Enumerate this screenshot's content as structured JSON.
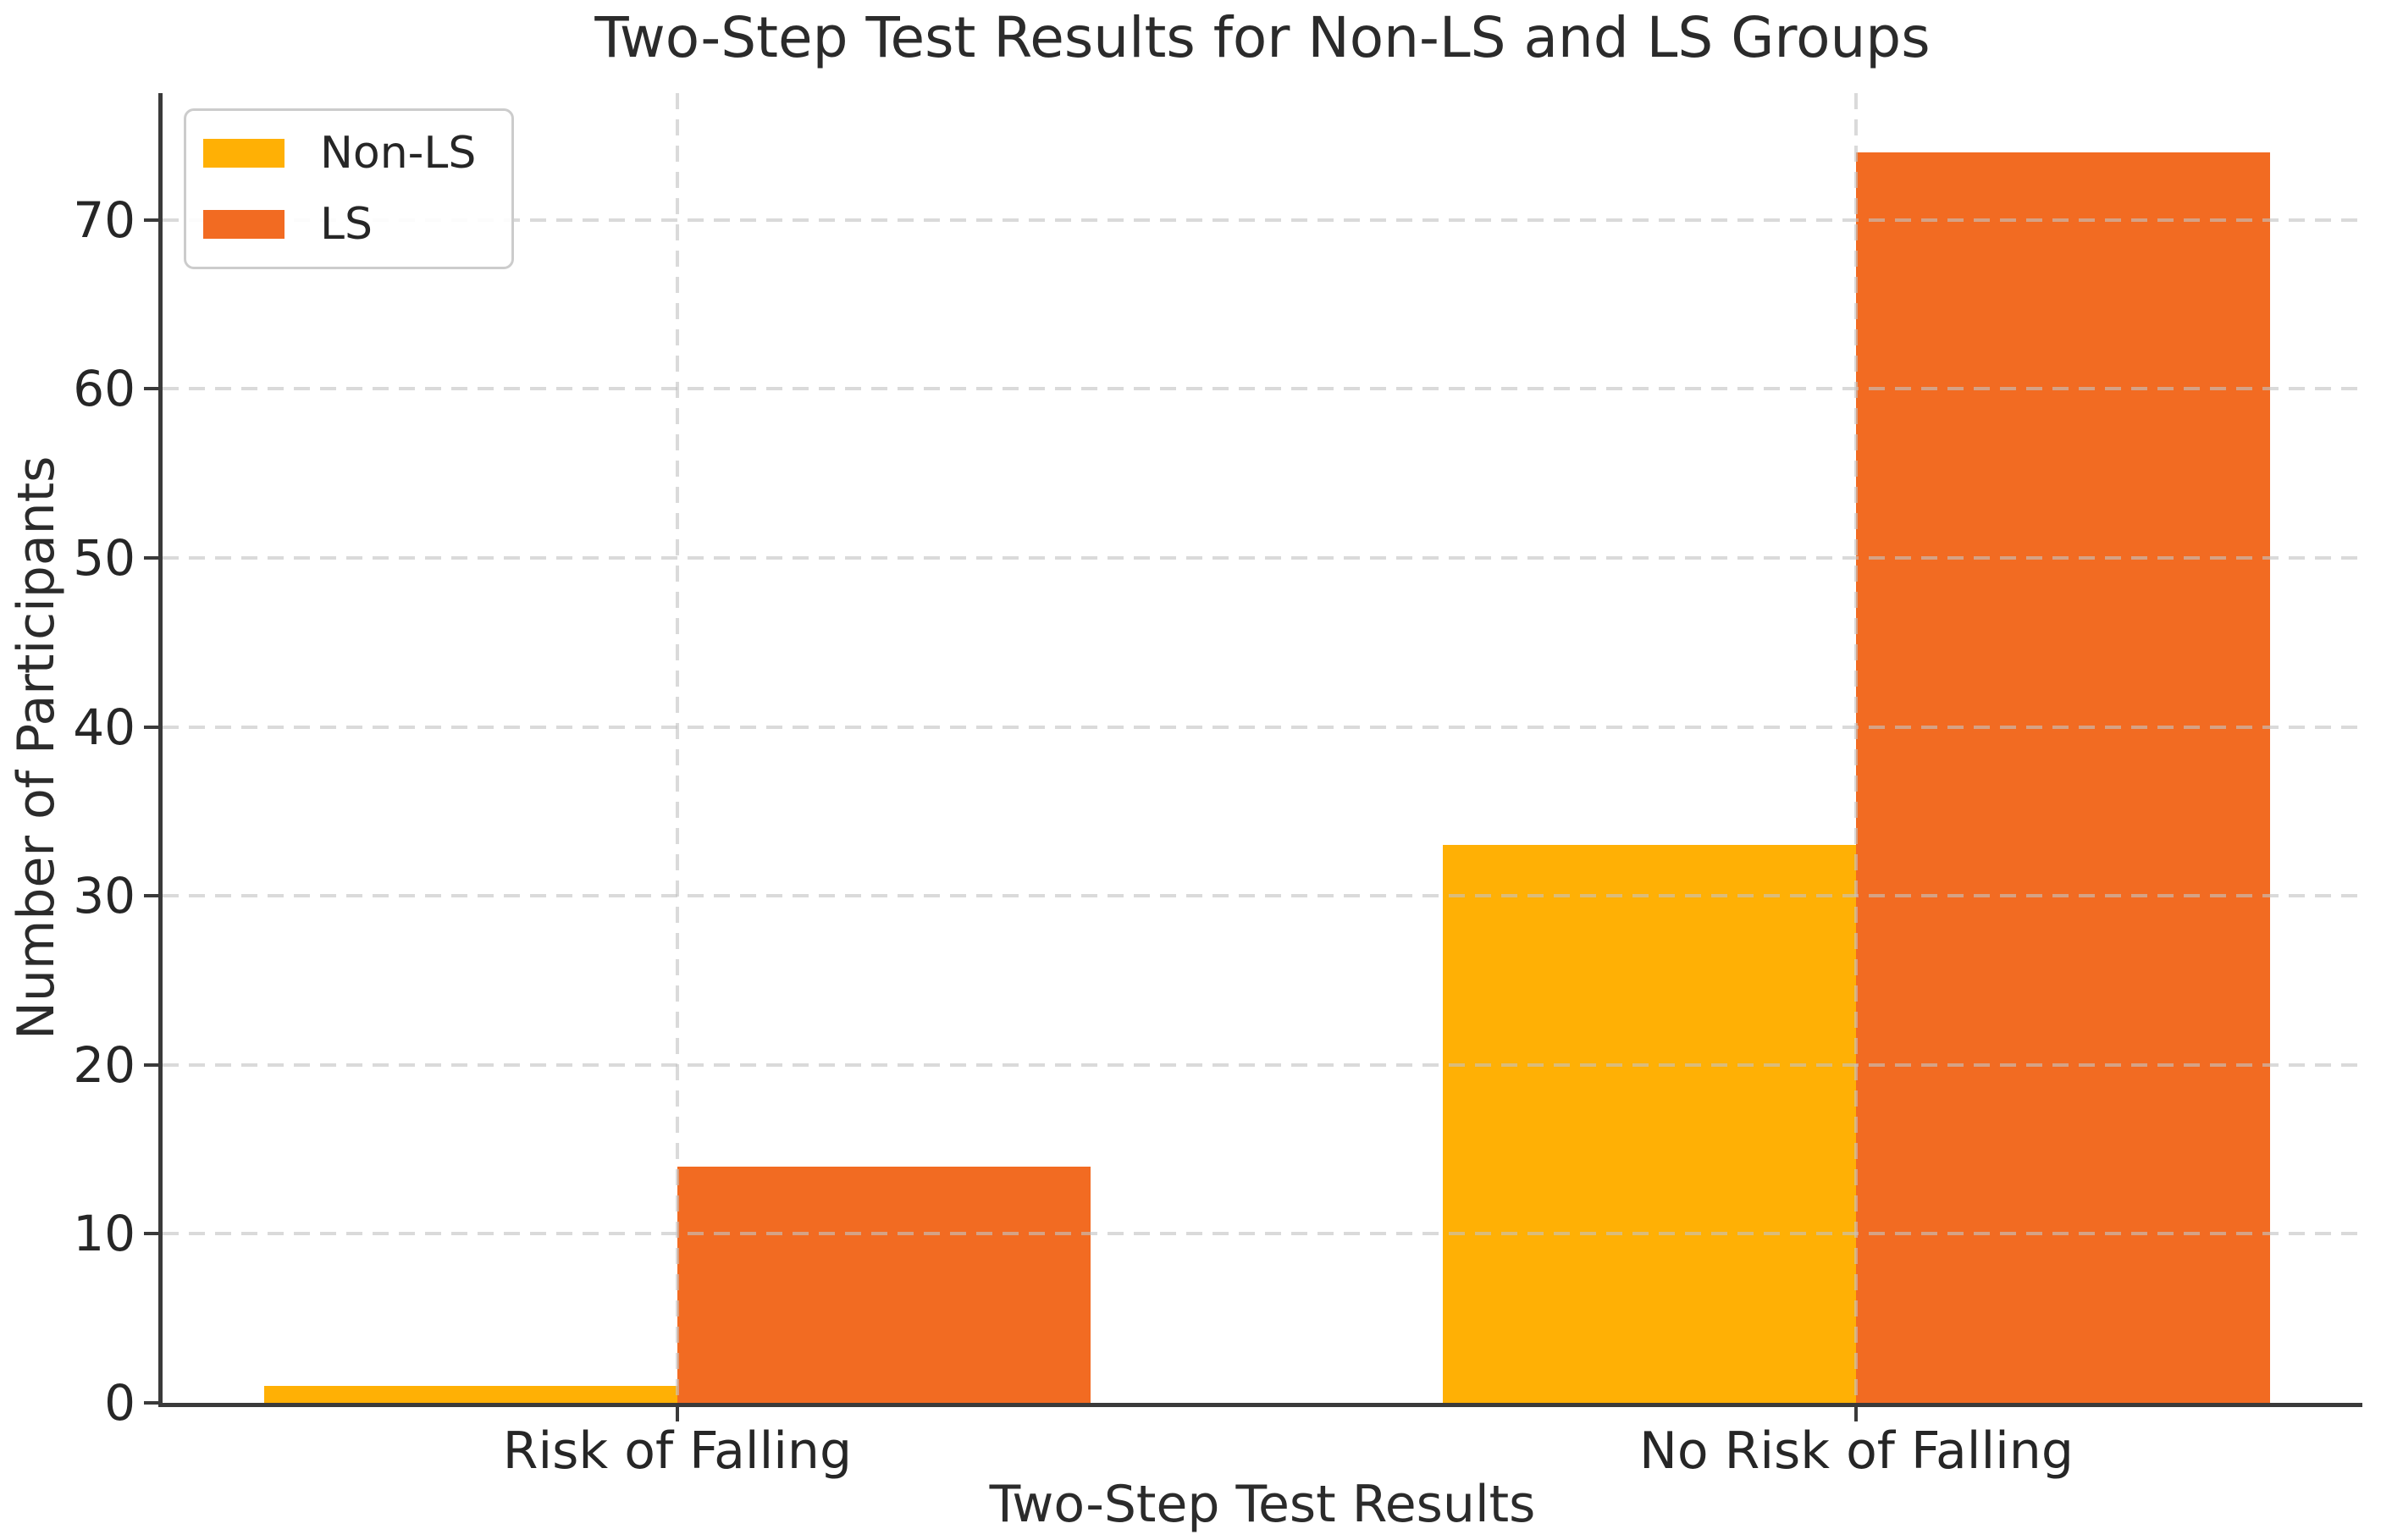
{
  "chart_data": {
    "type": "bar",
    "title": "Two-Step Test Results for Non-LS and LS Groups",
    "xlabel": "Two-Step Test Results",
    "ylabel": "Number of Participants",
    "categories": [
      "Risk of Falling",
      "No Risk of Falling"
    ],
    "series": [
      {
        "name": "Non-LS",
        "color": "#FFB005",
        "values": [
          1,
          33
        ]
      },
      {
        "name": "LS",
        "color": "#F26B22",
        "values": [
          14,
          74
        ]
      }
    ],
    "yticks": [
      0,
      10,
      20,
      30,
      40,
      50,
      60,
      70
    ],
    "ylim": [
      0,
      77.5
    ],
    "grid": "dashed, both axes, drawn over bars",
    "legend_position": "upper left",
    "bar_group_layout": "side-by-side pairs meeting at category center"
  },
  "colors": {
    "non_ls": "#FFB005",
    "ls": "#F26B22",
    "spine": "#3a3a3a",
    "gridline": "#cccccc",
    "text": "#262626",
    "background": "#ffffff"
  }
}
